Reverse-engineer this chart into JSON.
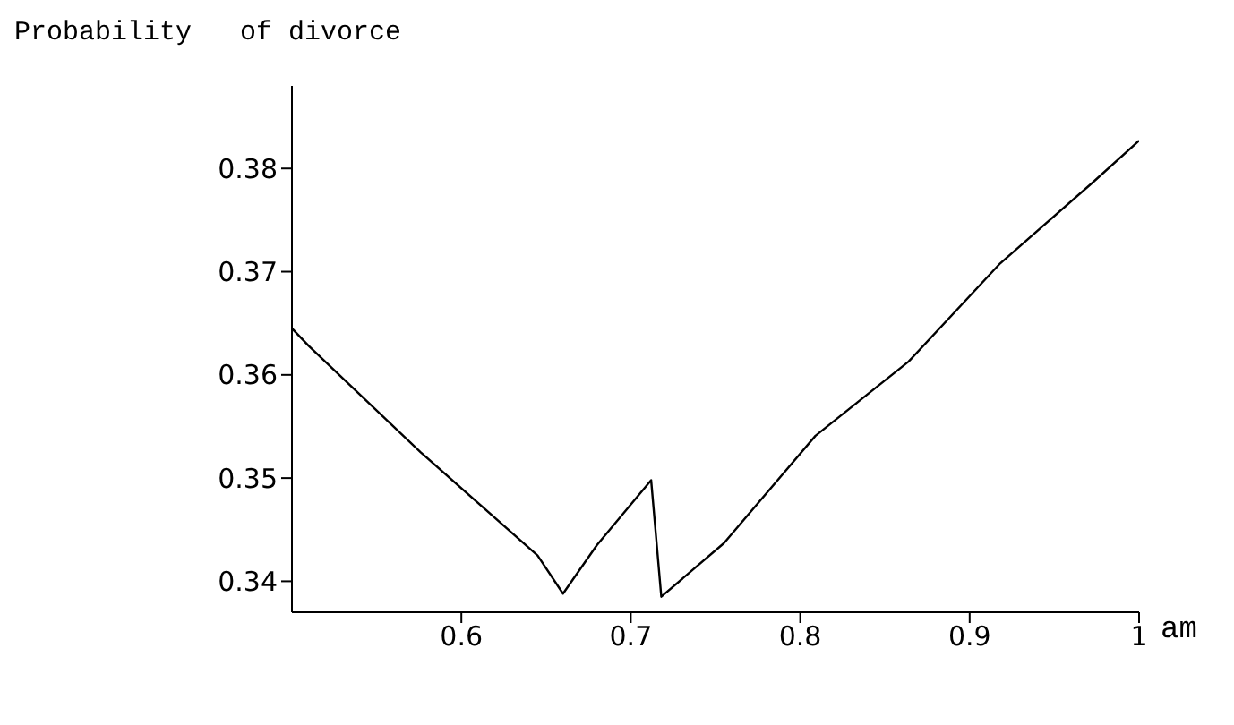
{
  "chart_data": {
    "type": "line",
    "ylabel": "Probability   of divorce",
    "xlabel": "am",
    "x": [
      0.5,
      0.51,
      0.576,
      0.645,
      0.66,
      0.68,
      0.712,
      0.718,
      0.755,
      0.809,
      0.864,
      0.918,
      0.973,
      1.0
    ],
    "series": [
      {
        "color": "#000000",
        "values": [
          0.3645,
          0.3628,
          0.3525,
          0.3425,
          0.3388,
          0.3435,
          0.3498,
          0.3385,
          0.3437,
          0.3541,
          0.3613,
          0.3708,
          0.3787,
          0.3827
        ]
      }
    ],
    "xlim": [
      0.5,
      1.0
    ],
    "xticks": [
      0.6,
      0.7,
      0.8,
      0.9,
      1
    ],
    "ylim": [
      0.337,
      0.388
    ],
    "yticks": [
      0.34,
      0.35,
      0.36,
      0.37,
      0.38
    ],
    "marker": "none",
    "line_style": "solid"
  }
}
